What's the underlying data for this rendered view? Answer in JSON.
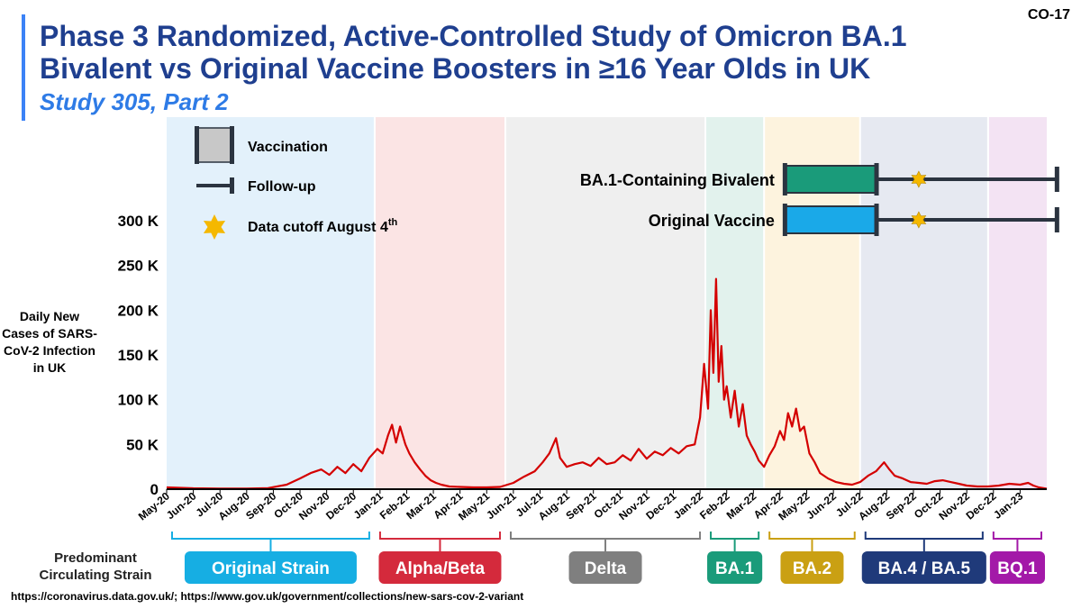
{
  "slide_id": "CO-17",
  "title": "Phase 3 Randomized, Active-Controlled Study of Omicron BA.1 Bivalent vs Original Vaccine Boosters in ≥16 Year Olds in UK",
  "subtitle": "Study 305, Part 2",
  "source": "https://coronavirus.data.gov.uk/; https://www.gov.uk/government/collections/new-sars-cov-2-variant",
  "strain_row_label": "Predominant Circulating Strain",
  "legend": {
    "vaccination": "Vaccination",
    "follow_up": "Follow-up",
    "cutoff_main": "Data cutoff August 4",
    "cutoff_sup": "th"
  },
  "colors": {
    "line": "#d40000",
    "title": "#1f3f8f",
    "subtitle": "#2e7be6",
    "star": "#f5b800"
  },
  "chart_data": {
    "type": "line",
    "ylabel": "Daily New Cases of SARS-CoV-2 Infection in UK",
    "ylim": [
      0,
      300000
    ],
    "yticks": [
      0,
      50000,
      100000,
      150000,
      200000,
      250000,
      300000
    ],
    "ytick_labels": [
      "0",
      "50 K",
      "100 K",
      "150 K",
      "200 K",
      "250 K",
      "300 K"
    ],
    "xlim": [
      0,
      33
    ],
    "x_tick_labels": [
      "May-20",
      "Jun-20",
      "Jul-20",
      "Aug-20",
      "Sep-20",
      "Oct-20",
      "Nov-20",
      "Dec-20",
      "Jan-21",
      "Feb-21",
      "Mar-21",
      "Apr-21",
      "May-21",
      "Jun-21",
      "Jul-21",
      "Aug-21",
      "Sep-21",
      "Oct-21",
      "Nov-21",
      "Dec-21",
      "Jan-22",
      "Feb-22",
      "Mar-22",
      "Apr-22",
      "May-22",
      "Jun-22",
      "Jul-22",
      "Aug-22",
      "Sep-22",
      "Oct-22",
      "Nov-22",
      "Dec-22",
      "Jan-23"
    ],
    "series": [
      {
        "name": "Daily new cases",
        "x": [
          0,
          1,
          2,
          3,
          3.8,
          4.5,
          5,
          5.4,
          5.8,
          6.1,
          6.4,
          6.7,
          7,
          7.3,
          7.6,
          7.9,
          8.1,
          8.3,
          8.45,
          8.6,
          8.75,
          8.95,
          9.1,
          9.3,
          9.5,
          9.7,
          9.9,
          10.1,
          10.3,
          10.6,
          11,
          11.5,
          12,
          12.5,
          13,
          13.4,
          13.8,
          14.1,
          14.35,
          14.6,
          14.75,
          15,
          15.3,
          15.6,
          15.9,
          16.2,
          16.5,
          16.8,
          17.1,
          17.4,
          17.7,
          18,
          18.3,
          18.6,
          18.9,
          19.2,
          19.5,
          19.8,
          20,
          20.15,
          20.3,
          20.4,
          20.5,
          20.6,
          20.7,
          20.8,
          20.9,
          21.0,
          21.15,
          21.3,
          21.45,
          21.6,
          21.75,
          21.9,
          22.05,
          22.2,
          22.4,
          22.6,
          22.8,
          23,
          23.15,
          23.3,
          23.45,
          23.6,
          23.75,
          23.9,
          24.1,
          24.3,
          24.5,
          24.8,
          25.1,
          25.4,
          25.7,
          26,
          26.3,
          26.6,
          26.9,
          27.1,
          27.3,
          27.6,
          27.9,
          28.2,
          28.5,
          28.8,
          29.1,
          29.4,
          29.7,
          30,
          30.4,
          30.8,
          31.2,
          31.6,
          32,
          32.3,
          32.5,
          32.7,
          32.9,
          33
        ],
        "values": [
          2000,
          1000,
          700,
          600,
          1200,
          5000,
          12000,
          18000,
          22000,
          16000,
          25000,
          18000,
          28000,
          20000,
          35000,
          45000,
          40000,
          60000,
          72000,
          52000,
          70000,
          50000,
          40000,
          30000,
          22000,
          15000,
          10000,
          7000,
          5000,
          3000,
          2500,
          2000,
          2000,
          2500,
          7000,
          14000,
          20000,
          30000,
          40000,
          57000,
          35000,
          25000,
          28000,
          30000,
          26000,
          35000,
          28000,
          30000,
          38000,
          32000,
          45000,
          34000,
          42000,
          38000,
          46000,
          40000,
          48000,
          50000,
          80000,
          140000,
          90000,
          200000,
          130000,
          235000,
          120000,
          160000,
          100000,
          115000,
          80000,
          110000,
          70000,
          95000,
          60000,
          50000,
          42000,
          32000,
          25000,
          38000,
          48000,
          65000,
          55000,
          85000,
          70000,
          90000,
          65000,
          70000,
          40000,
          30000,
          18000,
          12000,
          8000,
          6000,
          5000,
          8000,
          15000,
          20000,
          30000,
          22000,
          15000,
          12000,
          8000,
          7000,
          6000,
          9000,
          10000,
          8000,
          6000,
          4000,
          3000,
          3000,
          4000,
          6000,
          5000,
          7000,
          4000,
          2000,
          1000,
          500
        ]
      }
    ],
    "periods": [
      {
        "label": "Original Strain",
        "start": 0,
        "end": 7.8,
        "bg": "#e3f1fb",
        "color": "#16aee3"
      },
      {
        "label": "Alpha/Beta",
        "start": 7.8,
        "end": 12.7,
        "bg": "#fbe4e4",
        "color": "#d42a3c"
      },
      {
        "label": "Delta",
        "start": 12.7,
        "end": 20.2,
        "bg": "#efefef",
        "color": "#7f7f7f"
      },
      {
        "label": "BA.1",
        "start": 20.2,
        "end": 22.4,
        "bg": "#e2f2ed",
        "color": "#1a9b7a"
      },
      {
        "label": "BA.2",
        "start": 22.4,
        "end": 26.0,
        "bg": "#fdf3de",
        "color": "#caa013"
      },
      {
        "label": "BA.4 / BA.5",
        "start": 26.0,
        "end": 30.8,
        "bg": "#e6e9f1",
        "color": "#1f3a7a"
      },
      {
        "label": "BQ.1",
        "start": 30.8,
        "end": 33,
        "bg": "#f3e3f3",
        "color": "#a319a8"
      }
    ],
    "study_arms": [
      {
        "label": "BA.1-Containing Bivalent",
        "vacc_start": 23.2,
        "vacc_end": 26.6,
        "followup_end": 33.4,
        "cutoff": 28.2,
        "color": "#1a9b7a"
      },
      {
        "label": "Original Vaccine",
        "vacc_start": 23.2,
        "vacc_end": 26.6,
        "followup_end": 33.4,
        "cutoff": 28.2,
        "color": "#1aa9e8"
      }
    ]
  }
}
